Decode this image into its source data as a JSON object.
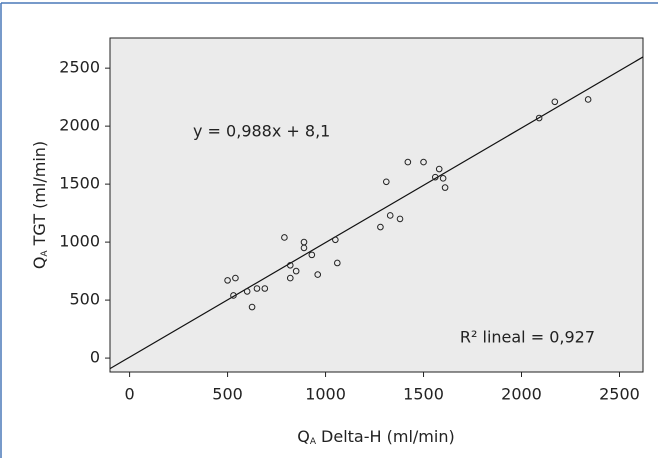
{
  "chart_data": {
    "type": "scatter",
    "x_label": {
      "symbol": "Q",
      "subscript": "A",
      "text": "Delta-H (ml/min)"
    },
    "y_label": {
      "symbol": "Q",
      "subscript": "A",
      "text": "TGT (ml/min)"
    },
    "x": [
      500,
      540,
      530,
      600,
      650,
      690,
      625,
      790,
      820,
      820,
      850,
      890,
      890,
      930,
      960,
      1050,
      1060,
      1280,
      1310,
      1330,
      1380,
      1420,
      1500,
      1560,
      1580,
      1600,
      1610,
      2090,
      2170,
      2340
    ],
    "y": [
      670,
      690,
      540,
      575,
      600,
      600,
      440,
      1040,
      800,
      690,
      750,
      1000,
      950,
      890,
      720,
      1020,
      820,
      1130,
      1520,
      1230,
      1200,
      1690,
      1690,
      1560,
      1630,
      1550,
      1470,
      2070,
      2210,
      2230
    ],
    "color": "#222222",
    "xlim": [
      -100,
      2620
    ],
    "ylim": [
      -120,
      2760
    ],
    "xticks": [
      0,
      500,
      1000,
      1500,
      2000,
      2500
    ],
    "yticks": [
      0,
      500,
      1000,
      1500,
      2000,
      2500
    ],
    "fit_line": {
      "slope": 0.988,
      "intercept": 8.1,
      "label": "y = 0,988x + 8,1"
    },
    "annotation": "R² lineal = 0,927"
  }
}
